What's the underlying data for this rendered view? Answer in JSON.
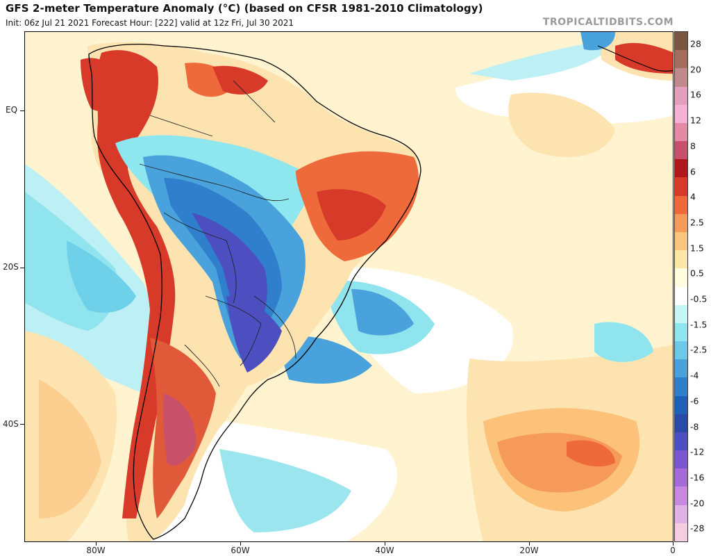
{
  "header": {
    "title": "GFS 2-meter Temperature Anomaly (°C) (based on CFSR 1981-2010 Climatology)",
    "subtitle": "Init: 06z Jul 21 2021   Forecast Hour: [222]   valid at 12z Fri, Jul 30 2021",
    "brand": "TROPICALTIDBITS.COM"
  },
  "axes": {
    "lat_labels": [
      "EQ",
      "20S",
      "40S"
    ],
    "lon_labels": [
      "80W",
      "60W",
      "40W",
      "20W",
      "0"
    ]
  },
  "colorbar": {
    "labels": [
      "28",
      "20",
      "16",
      "12",
      "8",
      "6",
      "4",
      "2.5",
      "1.5",
      "0.5",
      "-0.5",
      "-1.5",
      "-2.5",
      "-4",
      "-6",
      "-8",
      "-12",
      "-16",
      "-20",
      "-28"
    ],
    "colors": [
      "#7b5640",
      "#a46d5c",
      "#c08a8a",
      "#e3a0be",
      "#f5b1d6",
      "#e58aa6",
      "#c8506a",
      "#b01820",
      "#d83a2a",
      "#ee6a3a",
      "#f59a58",
      "#fac47c",
      "#fce7a6",
      "#fffce0",
      "#ffffff",
      "#c8f6f6",
      "#8ee6ee",
      "#6ccae8",
      "#4aa2dc",
      "#2f7fcc",
      "#1e5fb8",
      "#2a49a8",
      "#4d4fc0",
      "#7a56d0",
      "#a36ad8",
      "#c58ae0",
      "#e0b3e6",
      "#f4cde0"
    ]
  }
}
